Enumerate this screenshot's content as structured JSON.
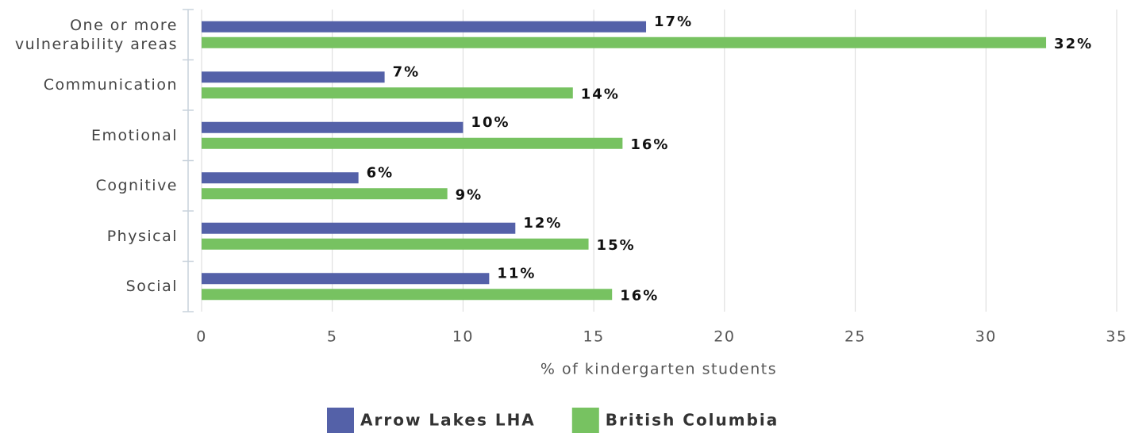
{
  "chart_data": {
    "type": "hbar",
    "x_label": "% of kindergarten students",
    "categories": [
      "One or more vulnerability areas",
      "Communication",
      "Emotional",
      "Cognitive",
      "Physical",
      "Social"
    ],
    "series": [
      {
        "name": "Arrow Lakes LHA",
        "color": "#5461a8",
        "values": [
          17,
          7,
          10,
          6,
          12,
          11
        ],
        "value_labels": [
          "17%",
          "7%",
          "10%",
          "6%",
          "12%",
          "11%"
        ]
      },
      {
        "name": "British Columbia",
        "color": "#77c261",
        "values": [
          32.3,
          14.2,
          16.1,
          9.4,
          14.8,
          15.7
        ],
        "value_labels": [
          "32%",
          "14%",
          "16%",
          "9%",
          "15%",
          "16%"
        ]
      }
    ],
    "xlim": [
      0,
      35
    ],
    "xticks": [
      0,
      5,
      10,
      15,
      20,
      25,
      30,
      35
    ],
    "grid": true,
    "legend": "bottom"
  }
}
